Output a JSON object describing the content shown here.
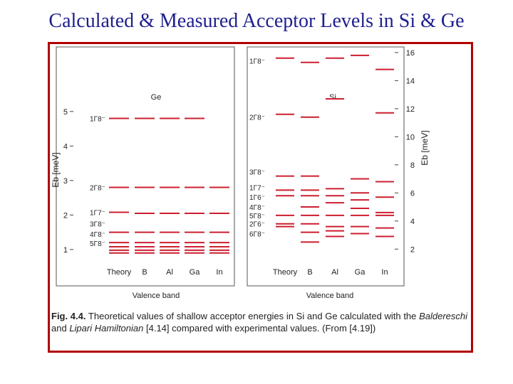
{
  "title": "Calculated & Measured Acceptor Levels in Si & Ge",
  "colors": {
    "title": "#1f1f8f",
    "frame": "#b30000",
    "line": "#cc1f2f",
    "text": "#222222"
  },
  "caption": {
    "label": "Fig. 4.4.",
    "part1": " Theoretical values of shallow acceptor energies in Si and Ge calculated with the ",
    "author1": "Baldereschi",
    "mid": " and ",
    "author2": "Lipari Hamiltonian",
    "part2": " [4.14] compared with experimental values. (From [4.19])"
  },
  "chart_data": [
    {
      "type": "level-diagram",
      "material": "Ge",
      "yaxis_label": "Eb [meV]",
      "ylim": [
        0.4,
        5.8
      ],
      "ticks": [
        1,
        2,
        3,
        4,
        5
      ],
      "columns": [
        "Theory",
        "B",
        "Al",
        "Ga",
        "In"
      ],
      "xlabel": "Valence band",
      "state_labels": [
        {
          "text": "1Γ8⁻",
          "y": 4.8
        },
        {
          "text": "2Γ8⁻",
          "y": 2.8
        },
        {
          "text": "1Γ7⁻",
          "y": 2.08
        },
        {
          "text": "3Γ8⁻",
          "y": 1.75
        },
        {
          "text": "4Γ8⁻",
          "y": 1.45
        },
        {
          "text": "5Γ8⁻",
          "y": 1.18
        }
      ],
      "levels": [
        {
          "y": 4.8,
          "columns": [
            0,
            1,
            2,
            3
          ]
        },
        {
          "y": 2.8,
          "columns": [
            0,
            1,
            2,
            3,
            4
          ]
        },
        {
          "y": 2.08,
          "columns": [
            0
          ]
        },
        {
          "y": 2.05,
          "columns": [
            1,
            2,
            3,
            4
          ]
        },
        {
          "y": 1.5,
          "columns": [
            0,
            1,
            2,
            3,
            4
          ]
        },
        {
          "y": 1.2,
          "columns": [
            0,
            1,
            2,
            3,
            4
          ]
        },
        {
          "y": 1.08,
          "columns": [
            0,
            1,
            2,
            3,
            4
          ]
        },
        {
          "y": 0.98,
          "columns": [
            0,
            1,
            2,
            3,
            4
          ]
        },
        {
          "y": 0.9,
          "columns": [
            0,
            1,
            2,
            3,
            4
          ]
        }
      ]
    },
    {
      "type": "level-diagram",
      "material": "Si",
      "yaxis_label": "Eb [meV]",
      "ylim": [
        1.0,
        16.4
      ],
      "ticks": [
        2,
        4,
        6,
        8,
        10,
        12,
        14,
        16
      ],
      "columns": [
        "Theory",
        "B",
        "Al",
        "Ga",
        "In"
      ],
      "xlabel": "Valence band",
      "state_labels": [
        {
          "text": "1Γ8⁻",
          "y": 15.4
        },
        {
          "text": "2Γ8⁻",
          "y": 11.4
        },
        {
          "text": "3Γ8⁻",
          "y": 7.5
        },
        {
          "text": "1Γ7⁻",
          "y": 6.4
        },
        {
          "text": "1Γ6⁻",
          "y": 5.7
        },
        {
          "text": "4Γ8⁻",
          "y": 5.0
        },
        {
          "text": "5Γ8⁻",
          "y": 4.4
        },
        {
          "text": "2Γ6⁻",
          "y": 3.8
        },
        {
          "text": "6Γ8⁻",
          "y": 3.1
        }
      ],
      "levels": [
        {
          "y": 15.6,
          "columns": [
            0,
            2
          ]
        },
        {
          "y": 15.3,
          "columns": [
            1
          ]
        },
        {
          "y": 15.8,
          "columns": [
            3
          ]
        },
        {
          "y": 14.8,
          "columns": [
            4
          ]
        },
        {
          "y": 12.7,
          "columns": [
            2
          ]
        },
        {
          "y": 11.7,
          "columns": [
            4
          ]
        },
        {
          "y": 11.6,
          "columns": [
            0
          ]
        },
        {
          "y": 11.4,
          "columns": [
            1
          ]
        },
        {
          "y": 7.2,
          "columns": [
            0,
            1
          ]
        },
        {
          "y": 7.0,
          "columns": [
            3
          ]
        },
        {
          "y": 6.8,
          "columns": [
            4
          ]
        },
        {
          "y": 6.3,
          "columns": [
            2
          ]
        },
        {
          "y": 6.2,
          "columns": [
            0,
            1
          ]
        },
        {
          "y": 6.0,
          "columns": [
            3
          ]
        },
        {
          "y": 5.8,
          "columns": [
            2
          ]
        },
        {
          "y": 5.8,
          "columns": [
            0,
            1
          ]
        },
        {
          "y": 5.7,
          "columns": [
            4
          ]
        },
        {
          "y": 5.5,
          "columns": [
            3
          ]
        },
        {
          "y": 5.3,
          "columns": [
            2
          ]
        },
        {
          "y": 5.0,
          "columns": [
            1
          ]
        },
        {
          "y": 4.9,
          "columns": [
            3
          ]
        },
        {
          "y": 4.6,
          "columns": [
            4
          ]
        },
        {
          "y": 4.4,
          "columns": [
            0,
            1,
            2,
            3,
            4
          ]
        },
        {
          "y": 3.8,
          "columns": [
            0,
            1
          ]
        },
        {
          "y": 3.6,
          "columns": [
            2,
            3
          ]
        },
        {
          "y": 3.6,
          "columns": [
            0
          ]
        },
        {
          "y": 3.5,
          "columns": [
            4
          ]
        },
        {
          "y": 3.3,
          "columns": [
            2
          ]
        },
        {
          "y": 3.2,
          "columns": [
            1
          ]
        },
        {
          "y": 3.1,
          "columns": [
            3
          ]
        },
        {
          "y": 2.9,
          "columns": [
            2,
            4
          ]
        },
        {
          "y": 2.5,
          "columns": [
            1
          ]
        }
      ]
    }
  ]
}
